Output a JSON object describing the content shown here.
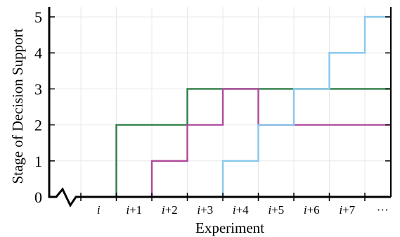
{
  "chart_data": {
    "type": "line",
    "step": true,
    "xlabel": "Experiment",
    "ylabel": "Stage of Decision Support",
    "categories": [
      "i",
      "i+1",
      "i+2",
      "i+3",
      "i+4",
      "i+5",
      "i+6",
      "i+7",
      "···"
    ],
    "y_ticks": [
      "0",
      "1",
      "2",
      "3",
      "4",
      "5"
    ],
    "ylim": [
      0,
      5
    ],
    "grid": true,
    "x_axis_break": true,
    "series": [
      {
        "color": "#2e7d46",
        "steps": [
          [
            0,
            0
          ],
          [
            1,
            2
          ],
          [
            3,
            3
          ]
        ]
      },
      {
        "color": "#b04a9c",
        "steps": [
          [
            0,
            0
          ],
          [
            2,
            1
          ],
          [
            3,
            2
          ],
          [
            4,
            3
          ],
          [
            5,
            2
          ]
        ]
      },
      {
        "color": "#87c9ec",
        "steps": [
          [
            0,
            0
          ],
          [
            4,
            1
          ],
          [
            5,
            2
          ],
          [
            6,
            3
          ],
          [
            7,
            4
          ],
          [
            8,
            5
          ]
        ]
      }
    ]
  }
}
